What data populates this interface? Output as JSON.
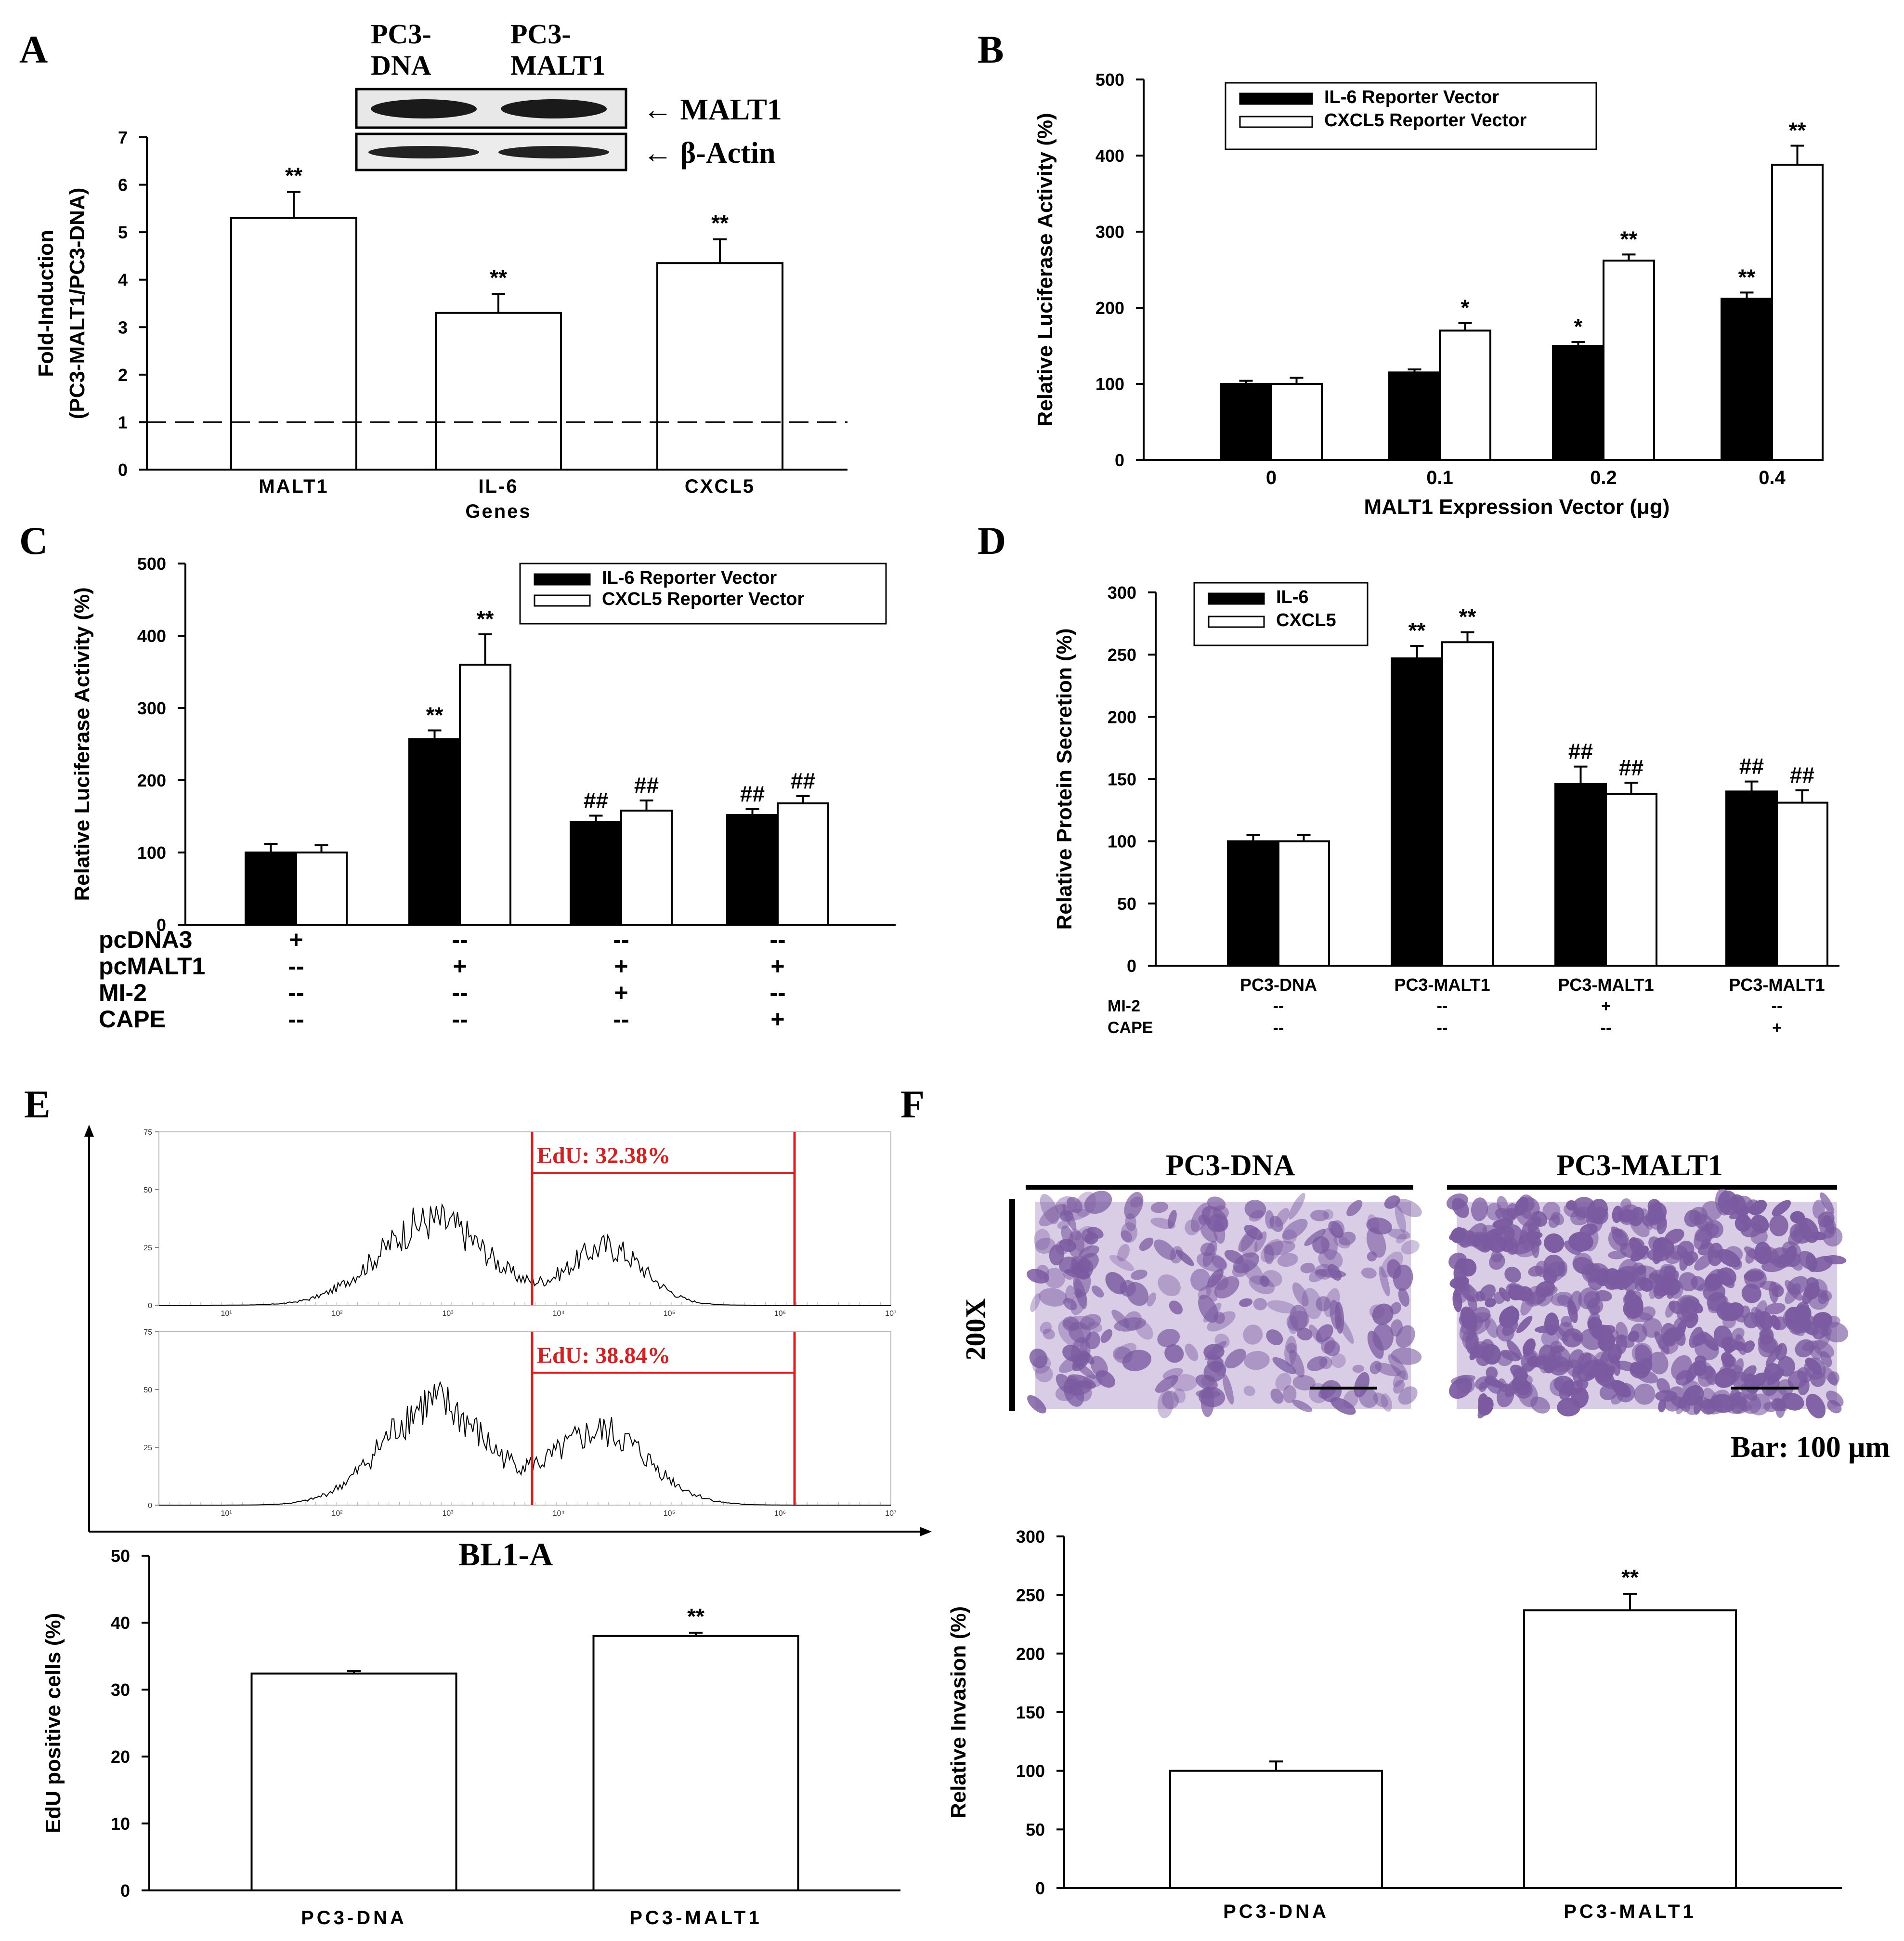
{
  "panel_labels": [
    "A",
    "B",
    "C",
    "D",
    "E",
    "F"
  ],
  "colors": {
    "filled": "#000000",
    "open": "#ffffff",
    "gate": "#d62020",
    "stain": "#7a5aa0",
    "stain_bg": "#d9cde6"
  },
  "blot": {
    "lane_labels": [
      "PC3-\nDNA",
      "PC3-\nMALT1"
    ],
    "lane1_l1": "PC3-",
    "lane1_l2": "DNA",
    "lane2_l1": "PC3-",
    "lane2_l2": "MALT1",
    "band1": "← MALT1",
    "band2": "← β-Actin"
  },
  "micro": {
    "titles": [
      "PC3-DNA",
      "PC3-MALT1"
    ],
    "mag": "200X",
    "bar": "Bar: 100 μm"
  },
  "flow": {
    "gate1": "EdU: 32.38%",
    "gate2": "EdU: 38.84%",
    "xlabel": "BL1-A",
    "yticks": [
      "0",
      "25",
      "50",
      "75"
    ],
    "xticks": [
      "10¹",
      "10²",
      "10³",
      "10⁴",
      "10⁵",
      "10⁶",
      "10⁷"
    ]
  },
  "chart_data": [
    {
      "id": "A",
      "type": "bar",
      "categories": [
        "MALT1",
        "IL-6",
        "CXCL5"
      ],
      "values": [
        5.3,
        3.3,
        4.35
      ],
      "errors": [
        0.55,
        0.4,
        0.5
      ],
      "sig": [
        "**",
        "**",
        "**"
      ],
      "reference_line": 1,
      "xlabel": "Genes",
      "ylabel_l1": "Fold-Induction",
      "ylabel_l2": "(PC3-MALT1/PC3-DNA)",
      "ylim": [
        0,
        7
      ],
      "yticks": [
        0,
        1,
        2,
        3,
        4,
        5,
        6,
        7
      ]
    },
    {
      "id": "B",
      "type": "bar",
      "categories": [
        "0",
        "0.1",
        "0.2",
        "0.4"
      ],
      "series": [
        {
          "name": "IL-6 Reporter Vector",
          "fill": "filled",
          "values": [
            100,
            115,
            150,
            212
          ],
          "errors": [
            4,
            4,
            5,
            8
          ],
          "sig": [
            "",
            "",
            "*",
            "**"
          ]
        },
        {
          "name": "CXCL5 Reporter Vector",
          "fill": "open",
          "values": [
            100,
            170,
            262,
            388
          ],
          "errors": [
            8,
            10,
            8,
            25
          ],
          "sig": [
            "",
            "*",
            "**",
            "**"
          ]
        }
      ],
      "xlabel": "MALT1 Expression Vector (μg)",
      "ylabel": "Relative Luciferase Activity (%)",
      "ylim": [
        0,
        500
      ],
      "yticks": [
        0,
        100,
        200,
        300,
        400,
        500
      ]
    },
    {
      "id": "C",
      "type": "bar",
      "categories": [
        "pcDNA3",
        "pcMALT1",
        "pcMALT1+MI-2",
        "pcMALT1+CAPE"
      ],
      "series": [
        {
          "name": "IL-6 Reporter Vector",
          "fill": "filled",
          "values": [
            100,
            257,
            142,
            152
          ],
          "errors": [
            12,
            12,
            9,
            8
          ],
          "sig": [
            "",
            "**",
            "##",
            "##"
          ]
        },
        {
          "name": "CXCL5 Reporter Vector",
          "fill": "open",
          "values": [
            100,
            360,
            158,
            168
          ],
          "errors": [
            10,
            42,
            14,
            10
          ],
          "sig": [
            "",
            "**",
            "##",
            "##"
          ]
        }
      ],
      "ylabel": "Relative Luciferase Activity (%)",
      "ylim": [
        0,
        500
      ],
      "yticks": [
        0,
        100,
        200,
        300,
        400,
        500
      ],
      "treatments": [
        {
          "name": "pcDNA3",
          "marks": [
            "+",
            "--",
            "--",
            "--"
          ]
        },
        {
          "name": "pcMALT1",
          "marks": [
            "--",
            "+",
            "+",
            "+"
          ]
        },
        {
          "name": "MI-2",
          "marks": [
            "--",
            "--",
            "+",
            "--"
          ]
        },
        {
          "name": "CAPE",
          "marks": [
            "--",
            "--",
            "--",
            "+"
          ]
        }
      ]
    },
    {
      "id": "D",
      "type": "bar",
      "categories": [
        "PC3-DNA",
        "PC3-MALT1",
        "PC3-MALT1",
        "PC3-MALT1"
      ],
      "series": [
        {
          "name": "IL-6",
          "fill": "filled",
          "values": [
            100,
            247,
            146,
            140
          ],
          "errors": [
            5,
            10,
            14,
            8
          ],
          "sig": [
            "",
            "**",
            "##",
            "##"
          ]
        },
        {
          "name": "CXCL5",
          "fill": "open",
          "values": [
            100,
            260,
            138,
            131
          ],
          "errors": [
            5,
            8,
            9,
            10
          ],
          "sig": [
            "",
            "**",
            "##",
            "##"
          ]
        }
      ],
      "ylabel": "Relative Protein Secretion (%)",
      "ylim": [
        0,
        300
      ],
      "yticks": [
        0,
        50,
        100,
        150,
        200,
        250,
        300
      ],
      "treatments": [
        {
          "name": "MI-2",
          "marks": [
            "--",
            "--",
            "+",
            "--"
          ]
        },
        {
          "name": "CAPE",
          "marks": [
            "--",
            "--",
            "--",
            "+"
          ]
        }
      ]
    },
    {
      "id": "E",
      "type": "bar",
      "categories": [
        "PC3-DNA",
        "PC3-MALT1"
      ],
      "values": [
        32.4,
        38
      ],
      "errors": [
        0.4,
        0.5
      ],
      "sig": [
        "",
        "**"
      ],
      "ylabel": "EdU positive cells (%)",
      "ylim": [
        0,
        50
      ],
      "yticks": [
        0,
        10,
        20,
        30,
        40,
        50
      ]
    },
    {
      "id": "F",
      "type": "bar",
      "categories": [
        "PC3-DNA",
        "PC3-MALT1"
      ],
      "values": [
        100,
        237
      ],
      "errors": [
        8,
        14
      ],
      "sig": [
        "",
        "**"
      ],
      "ylabel": "Relative Invasion (%)",
      "ylim": [
        0,
        300
      ],
      "yticks": [
        0,
        50,
        100,
        150,
        200,
        250,
        300
      ]
    }
  ]
}
